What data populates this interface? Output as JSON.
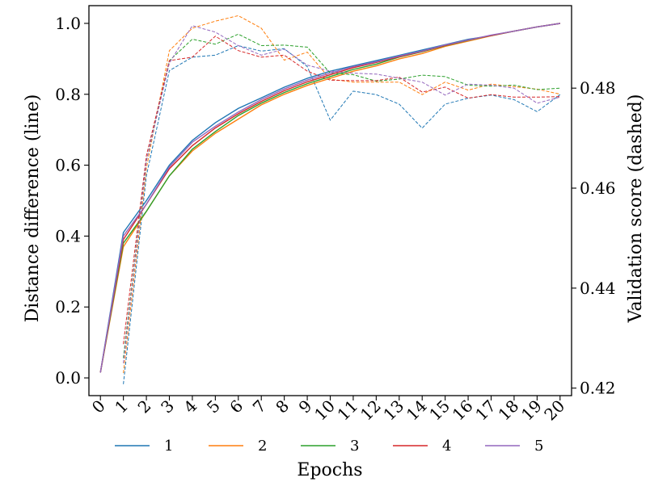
{
  "chart_data": {
    "type": "line",
    "xlabel": "Epochs",
    "ylabel_left": "Distance difference (line)",
    "ylabel_right": "Validation score (dashed)",
    "x": [
      0,
      1,
      2,
      3,
      4,
      5,
      6,
      7,
      8,
      9,
      10,
      11,
      12,
      13,
      14,
      15,
      16,
      17,
      18,
      19,
      20
    ],
    "xtick_labels": [
      "0",
      "1",
      "2",
      "3",
      "4",
      "5",
      "6",
      "7",
      "8",
      "9",
      "10",
      "11",
      "12",
      "13",
      "14",
      "15",
      "16",
      "17",
      "18",
      "19",
      "20"
    ],
    "xlim": [
      -0.5,
      20.5
    ],
    "ylim_left": [
      -0.05,
      1.05
    ],
    "ylim_right": [
      0.4185,
      0.4965
    ],
    "yticks_left": [
      "0.0",
      "0.2",
      "0.4",
      "0.6",
      "0.8",
      "1.0"
    ],
    "yticks_left_values": [
      0.0,
      0.2,
      0.4,
      0.6,
      0.8,
      1.0
    ],
    "yticks_right": [
      "0.42",
      "0.44",
      "0.46",
      "0.48"
    ],
    "yticks_right_values": [
      0.42,
      0.44,
      0.46,
      0.48
    ],
    "legend_position": "bottom-center",
    "series": [
      {
        "name": "1",
        "color": "#1f77b4",
        "distance": [
          0.015,
          0.41,
          0.5,
          0.6,
          0.67,
          0.72,
          0.76,
          0.79,
          0.82,
          0.845,
          0.865,
          0.88,
          0.895,
          0.91,
          0.925,
          0.94,
          0.955,
          0.965,
          0.978,
          0.99,
          1.0
        ],
        "validation": [
          null,
          0.4208,
          0.4625,
          0.4835,
          0.4862,
          0.4866,
          0.4885,
          0.4874,
          0.4879,
          0.4843,
          0.4736,
          0.4794,
          0.4787,
          0.4768,
          0.472,
          0.4768,
          0.478,
          0.4786,
          0.4777,
          0.4753,
          0.4787
        ]
      },
      {
        "name": "2",
        "color": "#ff7f0e",
        "distance": [
          0.015,
          0.37,
          0.47,
          0.57,
          0.64,
          0.69,
          0.73,
          0.77,
          0.8,
          0.825,
          0.845,
          0.865,
          0.88,
          0.9,
          0.915,
          0.935,
          0.95,
          0.965,
          0.978,
          0.99,
          1.0
        ],
        "validation": [
          null,
          0.423,
          0.464,
          0.4875,
          0.492,
          0.4934,
          0.4945,
          0.492,
          0.4856,
          0.4872,
          0.4818,
          0.4812,
          0.4812,
          0.4812,
          0.4787,
          0.4812,
          0.4796,
          0.4808,
          0.4803,
          0.4798,
          0.4788
        ]
      },
      {
        "name": "3",
        "color": "#2ca02c",
        "distance": [
          0.015,
          0.38,
          0.47,
          0.57,
          0.645,
          0.695,
          0.74,
          0.775,
          0.805,
          0.83,
          0.85,
          0.87,
          0.885,
          0.905,
          0.92,
          0.937,
          0.952,
          0.966,
          0.978,
          0.99,
          1.0
        ],
        "validation": [
          null,
          0.426,
          0.4655,
          0.4855,
          0.4898,
          0.4888,
          0.4908,
          0.4885,
          0.4886,
          0.4882,
          0.483,
          0.4827,
          0.4814,
          0.4818,
          0.4826,
          0.4823,
          0.4806,
          0.4804,
          0.4806,
          0.4797,
          0.48
        ]
      },
      {
        "name": "4",
        "color": "#d62728",
        "distance": [
          0.015,
          0.39,
          0.49,
          0.59,
          0.655,
          0.705,
          0.745,
          0.78,
          0.81,
          0.835,
          0.855,
          0.875,
          0.89,
          0.906,
          0.921,
          0.938,
          0.953,
          0.966,
          0.978,
          0.99,
          1.0
        ],
        "validation": [
          null,
          0.4288,
          0.4665,
          0.4855,
          0.4862,
          0.4904,
          0.4875,
          0.4862,
          0.4866,
          0.4834,
          0.4816,
          0.4815,
          0.4815,
          0.4822,
          0.4792,
          0.4802,
          0.478,
          0.4787,
          0.4782,
          0.4782,
          0.4783
        ]
      },
      {
        "name": "5",
        "color": "#9467bd",
        "distance": [
          0.015,
          0.4,
          0.49,
          0.595,
          0.665,
          0.71,
          0.75,
          0.785,
          0.815,
          0.84,
          0.86,
          0.878,
          0.892,
          0.908,
          0.922,
          0.939,
          0.953,
          0.967,
          0.978,
          0.99,
          1.0
        ],
        "validation": [
          null,
          0.425,
          0.4655,
          0.485,
          0.4925,
          0.4912,
          0.4885,
          0.4866,
          0.4878,
          0.4846,
          0.4834,
          0.483,
          0.4828,
          0.482,
          0.4812,
          0.4786,
          0.4808,
          0.4806,
          0.48,
          0.477,
          0.4782
        ]
      }
    ]
  }
}
